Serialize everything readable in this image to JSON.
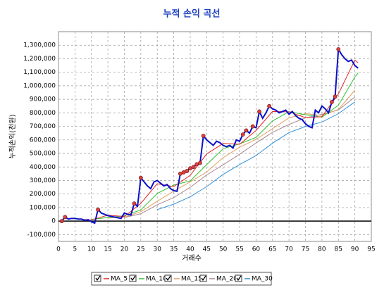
{
  "chart_data": {
    "type": "line",
    "title": "누적 손익 곡선",
    "x_label": "거래수",
    "y_label": "누적손익(천원)",
    "xlim": [
      0,
      95
    ],
    "xticks": [
      0,
      5,
      10,
      15,
      20,
      25,
      30,
      35,
      40,
      45,
      50,
      55,
      60,
      65,
      70,
      75,
      80,
      85,
      90,
      95
    ],
    "ylim": [
      -150000,
      1400000
    ],
    "yticks": [
      {
        "value": -100000,
        "label": "-100,000"
      },
      0,
      {
        "value": 100000,
        "label": "100,000"
      },
      {
        "value": 200000,
        "label": "200,000"
      },
      {
        "value": 300000,
        "label": "300,000"
      },
      {
        "value": 400000,
        "label": "400,000"
      },
      {
        "value": 500000,
        "label": "500,000"
      },
      {
        "value": 600000,
        "label": "600,000"
      },
      {
        "value": 700000,
        "label": "700,000"
      },
      {
        "value": 800000,
        "label": "800,000"
      },
      {
        "value": 900000,
        "label": "900,000"
      },
      {
        "value": 1000000,
        "label": "1,000,000"
      },
      {
        "value": 1100000,
        "label": "1,100,000"
      },
      {
        "value": 1200000,
        "label": "1,200,000"
      },
      {
        "value": 1300000,
        "label": "1,300,000"
      }
    ],
    "grid": true,
    "series": [
      {
        "color": "#0a10c8",
        "x": [
          1,
          2,
          3,
          4,
          5,
          6,
          7,
          8,
          9,
          10,
          11,
          12,
          13,
          14,
          15,
          16,
          17,
          18,
          19,
          20,
          21,
          22,
          23,
          24,
          25,
          26,
          27,
          28,
          29,
          30,
          31,
          32,
          33,
          34,
          35,
          36,
          37,
          38,
          39,
          40,
          41,
          42,
          43,
          44,
          45,
          46,
          47,
          48,
          49,
          50,
          51,
          52,
          53,
          54,
          55,
          56,
          57,
          58,
          59,
          60,
          61,
          62,
          63,
          64,
          65,
          66,
          67,
          68,
          69,
          70,
          71,
          72,
          73,
          74,
          75,
          76,
          77,
          78,
          79,
          80,
          81,
          82,
          83,
          84,
          85,
          86,
          87,
          88,
          89,
          90,
          91
        ],
        "values": [
          0,
          30000,
          15000,
          20000,
          20000,
          15000,
          15000,
          5000,
          10000,
          -5000,
          -15000,
          85000,
          60000,
          50000,
          40000,
          35000,
          30000,
          25000,
          20000,
          60000,
          50000,
          45000,
          130000,
          110000,
          320000,
          290000,
          260000,
          240000,
          290000,
          300000,
          280000,
          260000,
          270000,
          240000,
          225000,
          220000,
          350000,
          360000,
          370000,
          390000,
          400000,
          420000,
          430000,
          630000,
          600000,
          580000,
          560000,
          590000,
          580000,
          560000,
          550000,
          560000,
          540000,
          600000,
          590000,
          640000,
          670000,
          650000,
          700000,
          690000,
          810000,
          760000,
          800000,
          850000,
          830000,
          820000,
          800000,
          810000,
          820000,
          790000,
          810000,
          780000,
          760000,
          750000,
          720000,
          700000,
          690000,
          820000,
          800000,
          850000,
          830000,
          800000,
          880000,
          920000,
          1270000,
          1230000,
          1200000,
          1180000,
          1190000,
          1150000,
          1130000
        ]
      },
      {
        "name": "MA_5",
        "color": "#e02828",
        "x": [
          5,
          10,
          15,
          20,
          25,
          30,
          35,
          40,
          45,
          50,
          55,
          60,
          65,
          70,
          75,
          80,
          85,
          90,
          91
        ],
        "values": [
          17000,
          8000,
          44000,
          34000,
          131000,
          276000,
          255000,
          338000,
          496000,
          574000,
          568000,
          670000,
          810000,
          808000,
          764000,
          772000,
          940000,
          1190000,
          1170000
        ]
      },
      {
        "name": "MA_10",
        "color": "#30c030",
        "x": [
          10,
          15,
          20,
          25,
          30,
          35,
          40,
          45,
          50,
          55,
          60,
          65,
          70,
          75,
          80,
          85,
          90,
          91
        ],
        "values": [
          13000,
          26000,
          39000,
          83000,
          204000,
          266000,
          297000,
          417000,
          535000,
          571000,
          619000,
          740000,
          809000,
          786000,
          768000,
          856000,
          1065000,
          1095000
        ]
      },
      {
        "name": "MA_15",
        "color": "#e0a060",
        "x": [
          15,
          20,
          25,
          30,
          35,
          40,
          45,
          50,
          55,
          60,
          65,
          70,
          75,
          80,
          85,
          90
        ],
        "values": [
          23000,
          29000,
          70000,
          147000,
          221000,
          290000,
          363000,
          469000,
          546000,
          604000,
          683000,
          763000,
          794000,
          781000,
          825000,
          967000
        ]
      },
      {
        "name": "MA_20",
        "color": "#a88890",
        "x": [
          20,
          25,
          30,
          35,
          40,
          45,
          50,
          55,
          60,
          65,
          70,
          75,
          80,
          85,
          90
        ],
        "values": [
          26000,
          54000,
          121000,
          174000,
          250000,
          341000,
          416000,
          494000,
          577000,
          656000,
          714000,
          763000,
          789000,
          821000,
          917000
        ]
      },
      {
        "name": "MA_30",
        "color": "#3090d8",
        "x": [
          30,
          35,
          40,
          45,
          50,
          55,
          60,
          65,
          70,
          75,
          80,
          85,
          90
        ],
        "values": [
          85000,
          125000,
          180000,
          255000,
          345000,
          418000,
          484000,
          576000,
          654000,
          699000,
          732000,
          794000,
          881000
        ]
      }
    ]
  }
}
